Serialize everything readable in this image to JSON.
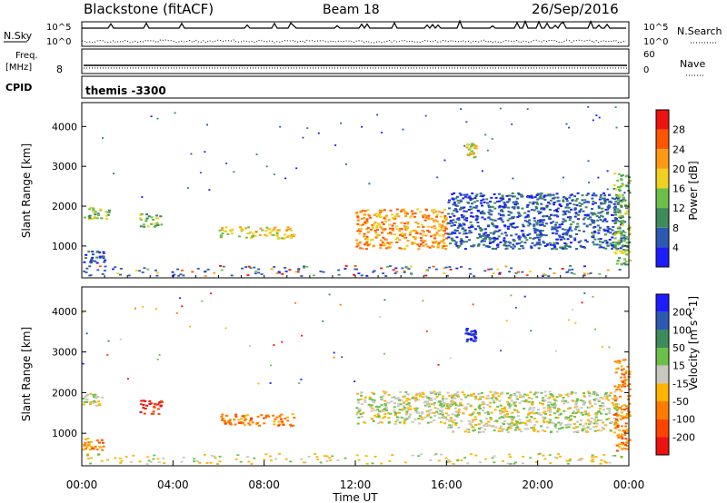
{
  "header": {
    "title": "Blackstone (fitACF)",
    "beam": "Beam 18",
    "date": "26/Sep/2016"
  },
  "nsky_panel": {
    "left_label": "N.Sky",
    "right_label": "N.Search",
    "left_ticks": [
      "10^5",
      "10^0"
    ],
    "right_ticks": [
      "10^5",
      "10^0"
    ]
  },
  "freq_panel": {
    "left_label_line1": "Freq.",
    "left_label_line2": "[MHz]",
    "left_tick": "8",
    "right_label": "Nave",
    "right_ticks": [
      "60",
      "0"
    ]
  },
  "cpid_panel": {
    "left_label": "CPID",
    "program": "themis -3300"
  },
  "chart_data": [
    {
      "type": "heatmap",
      "parameter": "power",
      "ylabel": "Slant Range [km]",
      "xlabel": "",
      "ylim": [
        200,
        4600
      ],
      "xlim_hours": [
        0,
        24
      ],
      "yticks": [
        1000,
        2000,
        3000,
        4000
      ],
      "colorbar_label": "Power [dB]",
      "colorbar_ticks": [
        "4",
        "8",
        "12",
        "16",
        "20",
        "24",
        "28"
      ],
      "colors": [
        "#1c1cff",
        "#2b5ab0",
        "#3d8a5a",
        "#6cc04a",
        "#f0d020",
        "#ff9a10",
        "#ff5500",
        "#ee1111"
      ],
      "scatter_regions": [
        {
          "t0": 0.0,
          "t1": 1.2,
          "r0": 1650,
          "r1": 1950,
          "level": 3
        },
        {
          "t0": 0.0,
          "t1": 1.0,
          "r0": 550,
          "r1": 850,
          "level": 1
        },
        {
          "t0": 2.5,
          "t1": 3.5,
          "r0": 1450,
          "r1": 1800,
          "level": 3
        },
        {
          "t0": 6.0,
          "t1": 9.3,
          "r0": 1150,
          "r1": 1450,
          "level": 4
        },
        {
          "t0": 12.0,
          "t1": 16.0,
          "r0": 900,
          "r1": 1900,
          "level": 5
        },
        {
          "t0": 16.0,
          "t1": 23.8,
          "r0": 900,
          "r1": 2300,
          "level": 1
        },
        {
          "t0": 16.8,
          "t1": 17.3,
          "r0": 3200,
          "r1": 3550,
          "level": 4
        },
        {
          "t0": 23.3,
          "t1": 24.0,
          "r0": 500,
          "r1": 2800,
          "level": 3
        }
      ]
    },
    {
      "type": "heatmap",
      "parameter": "velocity",
      "ylabel": "Slant Range [km]",
      "xlabel": "Time UT",
      "ylim": [
        200,
        4600
      ],
      "xlim_hours": [
        0,
        24
      ],
      "yticks": [
        1000,
        2000,
        3000,
        4000
      ],
      "xticks": [
        "00:00",
        "04:00",
        "08:00",
        "12:00",
        "16:00",
        "20:00",
        "00:00"
      ],
      "colorbar_label": "Velocity [m s^-1]",
      "colorbar_ticks": [
        "200",
        "100",
        "50",
        "15",
        "-15",
        "-50",
        "-100",
        "-200"
      ],
      "colors": [
        "#1c1cff",
        "#2b5ab0",
        "#3d8a5a",
        "#6cc04a",
        "#c8c8c0",
        "#ffb400",
        "#ff7a00",
        "#ff4400",
        "#ee1111"
      ],
      "scatter_regions": [
        {
          "t0": 0.0,
          "t1": 1.0,
          "r0": 1650,
          "r1": 1950,
          "level": 4
        },
        {
          "t0": 0.0,
          "t1": 1.0,
          "r0": 550,
          "r1": 850,
          "level": 6
        },
        {
          "t0": 2.5,
          "t1": 3.5,
          "r0": 1450,
          "r1": 1800,
          "level": 8
        },
        {
          "t0": 6.0,
          "t1": 9.3,
          "r0": 1150,
          "r1": 1450,
          "level": 6
        },
        {
          "t0": 12.0,
          "t1": 16.0,
          "r0": 1200,
          "r1": 2000,
          "level": 4
        },
        {
          "t0": 16.0,
          "t1": 23.5,
          "r0": 1000,
          "r1": 2000,
          "level": 4
        },
        {
          "t0": 16.8,
          "t1": 17.3,
          "r0": 3200,
          "r1": 3550,
          "level": 0
        },
        {
          "t0": 23.3,
          "t1": 24.0,
          "r0": 500,
          "r1": 2800,
          "level": 6
        }
      ]
    }
  ]
}
